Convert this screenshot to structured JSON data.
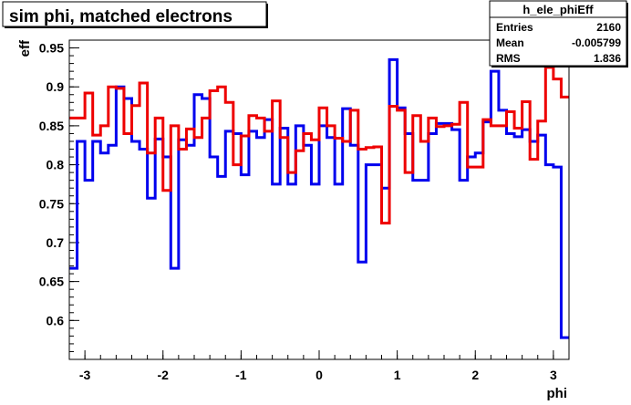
{
  "chart_data": {
    "type": "line",
    "title": "sim phi, matched electrons",
    "xlabel": "phi",
    "ylabel": "eff",
    "xlim": [
      -3.2,
      3.2
    ],
    "ylim": [
      0.55,
      0.96
    ],
    "x_ticks": [
      -3,
      -2,
      -1,
      0,
      1,
      2,
      3
    ],
    "x_tick_labels": [
      "-3",
      "-2",
      "-1",
      "0",
      "1",
      "2",
      "3"
    ],
    "y_ticks": [
      0.6,
      0.65,
      0.7,
      0.75,
      0.8,
      0.85,
      0.9,
      0.95
    ],
    "y_tick_labels": [
      "0.6",
      "0.65",
      "0.7",
      "0.75",
      "0.8",
      "0.85",
      "0.9",
      "0.95"
    ],
    "grid": false,
    "legend_placement": "none",
    "stats_box": {
      "name": "h_ele_phiEff",
      "rows": [
        {
          "label": "Entries",
          "value": "2160"
        },
        {
          "label": "Mean",
          "value": "-0.005799"
        },
        {
          "label": "RMS",
          "value": "1.836"
        }
      ]
    },
    "bin_edges": [
      -3.2,
      -3.1,
      -3.0,
      -2.9,
      -2.8,
      -2.7,
      -2.6,
      -2.5,
      -2.4,
      -2.3,
      -2.2,
      -2.1,
      -2.0,
      -1.9,
      -1.8,
      -1.7,
      -1.6,
      -1.5,
      -1.4,
      -1.3,
      -1.2,
      -1.1,
      -1.0,
      -0.9,
      -0.8,
      -0.7,
      -0.6,
      -0.5,
      -0.4,
      -0.3,
      -0.2,
      -0.1,
      0.0,
      0.1,
      0.2,
      0.3,
      0.4,
      0.5,
      0.6,
      0.7,
      0.8,
      0.9,
      1.0,
      1.1,
      1.2,
      1.3,
      1.4,
      1.5,
      1.6,
      1.7,
      1.8,
      1.9,
      2.0,
      2.1,
      2.2,
      2.3,
      2.4,
      2.5,
      2.6,
      2.7,
      2.8,
      2.9,
      3.0,
      3.1,
      3.2
    ],
    "series": [
      {
        "color": "#0000ee",
        "values": [
          0.667,
          0.83,
          0.78,
          0.83,
          0.815,
          0.825,
          0.9,
          0.885,
          0.83,
          0.82,
          0.757,
          0.833,
          0.81,
          0.667,
          0.832,
          0.825,
          0.89,
          0.885,
          0.81,
          0.785,
          0.843,
          0.84,
          0.787,
          0.843,
          0.835,
          0.858,
          0.775,
          0.847,
          0.775,
          0.85,
          0.825,
          0.775,
          0.85,
          0.835,
          0.775,
          0.872,
          0.825,
          0.675,
          0.8,
          0.8,
          0.77,
          0.935,
          0.873,
          0.84,
          0.78,
          0.78,
          0.84,
          0.853,
          0.853,
          0.845,
          0.78,
          0.81,
          0.815,
          0.855,
          0.92,
          0.87,
          0.84,
          0.836,
          0.845,
          0.83,
          0.838,
          0.8,
          0.797,
          0.578
        ]
      },
      {
        "color": "#ee0000",
        "values": [
          0.86,
          0.86,
          0.892,
          0.838,
          0.85,
          0.9,
          0.898,
          0.84,
          0.876,
          0.905,
          0.815,
          0.86,
          0.767,
          0.85,
          0.82,
          0.846,
          0.835,
          0.86,
          0.895,
          0.9,
          0.88,
          0.8,
          0.837,
          0.863,
          0.86,
          0.843,
          0.882,
          0.835,
          0.79,
          0.818,
          0.84,
          0.832,
          0.873,
          0.85,
          0.834,
          0.83,
          0.87,
          0.82,
          0.822,
          0.823,
          0.725,
          0.875,
          0.87,
          0.79,
          0.863,
          0.83,
          0.86,
          0.849,
          0.85,
          0.852,
          0.88,
          0.797,
          0.797,
          0.858,
          0.85,
          0.85,
          0.868,
          0.847,
          0.881,
          0.807,
          0.856,
          0.925,
          0.91,
          0.887
        ]
      }
    ]
  }
}
